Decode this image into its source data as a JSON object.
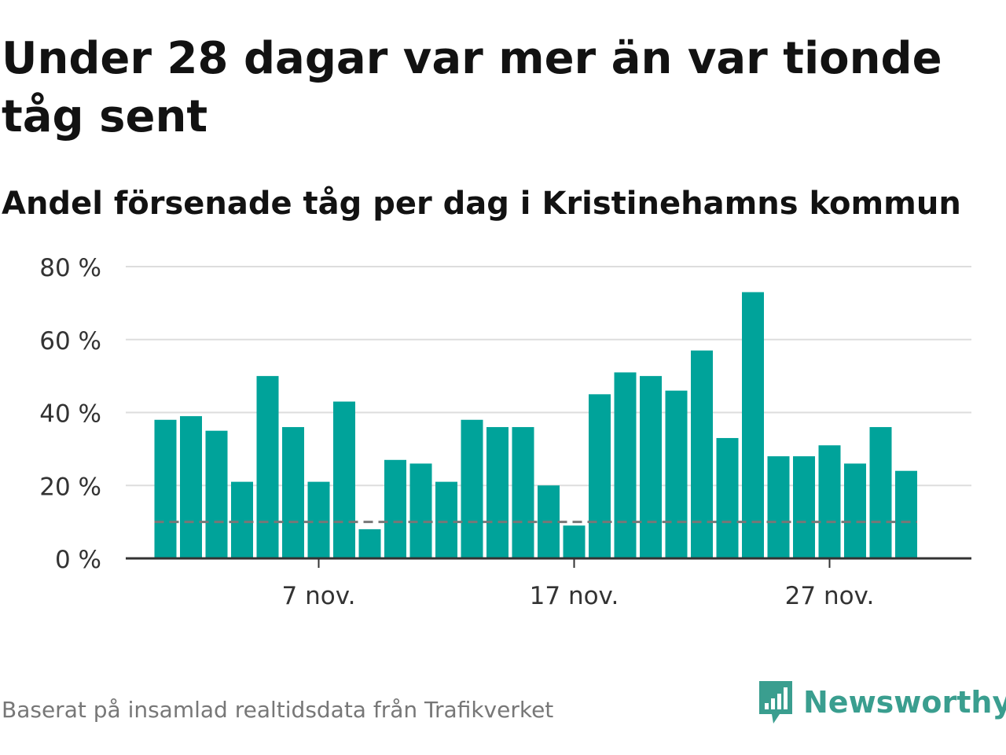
{
  "title": "Under 28 dagar var mer än var tionde tåg sent",
  "subtitle": "Andel försenade tåg per dag i Kristinehamns kommun",
  "source": "Baserat på insamlad realtidsdata från Trafikverket",
  "brand": {
    "name": "Newsworthy",
    "icon": "newsworthy-logo-icon",
    "color": "#3a9e8f"
  },
  "colors": {
    "bar": "#00a39a",
    "reference": "#777777",
    "grid": "#dddddd",
    "axis": "#333333",
    "text": "#333333"
  },
  "chart_data": {
    "type": "bar",
    "x": [
      "1 nov.",
      "2 nov.",
      "3 nov.",
      "4 nov.",
      "5 nov.",
      "6 nov.",
      "7 nov.",
      "8 nov.",
      "9 nov.",
      "10 nov.",
      "11 nov.",
      "12 nov.",
      "13 nov.",
      "14 nov.",
      "15 nov.",
      "16 nov.",
      "17 nov.",
      "18 nov.",
      "19 nov.",
      "20 nov.",
      "21 nov.",
      "22 nov.",
      "23 nov.",
      "24 nov.",
      "25 nov.",
      "26 nov.",
      "27 nov.",
      "28 nov.",
      "29 nov.",
      "30 nov."
    ],
    "values": [
      38,
      39,
      35,
      21,
      50,
      36,
      21,
      43,
      8,
      27,
      26,
      21,
      38,
      36,
      36,
      20,
      9,
      45,
      51,
      50,
      46,
      57,
      33,
      73,
      28,
      28,
      31,
      26,
      36,
      24
    ],
    "reference_line": 10,
    "ylim": [
      0,
      80
    ],
    "yticks": [
      0,
      20,
      40,
      60,
      80
    ],
    "ytick_labels": [
      "0 %",
      "20 %",
      "40 %",
      "60 %",
      "80 %"
    ],
    "xticks": [
      "7 nov.",
      "17 nov.",
      "27 nov."
    ],
    "grid": true,
    "xlabel": "",
    "ylabel": ""
  }
}
